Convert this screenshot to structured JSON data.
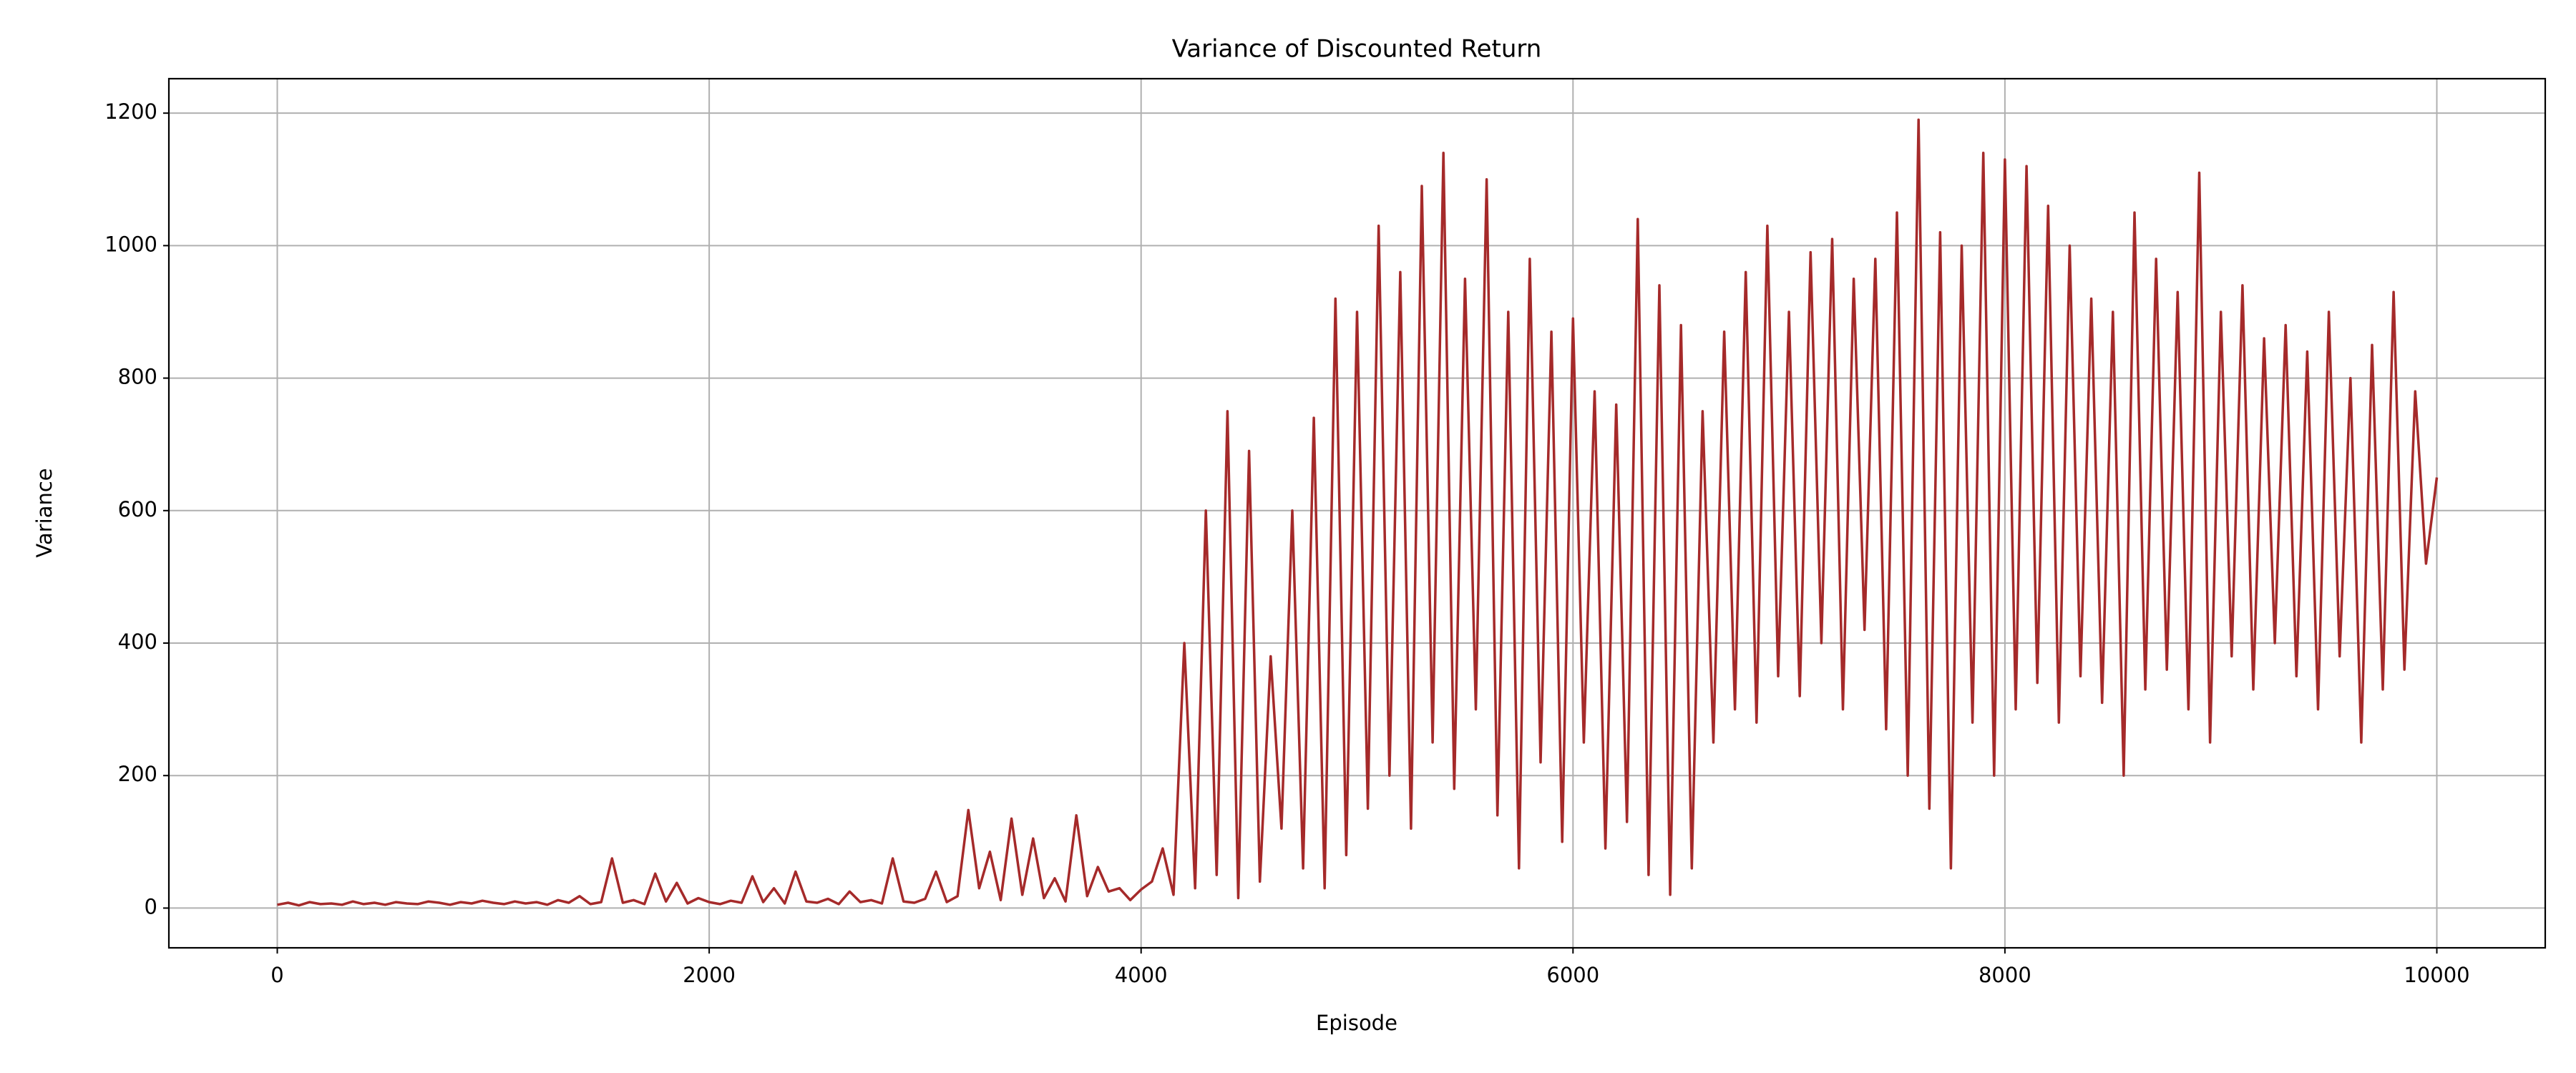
{
  "chart_data": {
    "type": "line",
    "title": "Variance of Discounted Return",
    "xlabel": "Episode",
    "ylabel": "Variance",
    "color": "#a52a2a",
    "grid": true,
    "xlim": [
      -502,
      10502
    ],
    "ylim": [
      -60,
      1252
    ],
    "xticks": [
      0,
      2000,
      4000,
      6000,
      8000,
      10000
    ],
    "yticks": [
      0,
      200,
      400,
      600,
      800,
      1000,
      1200
    ],
    "x": [
      0,
      50,
      100,
      150,
      200,
      250,
      300,
      350,
      400,
      450,
      500,
      550,
      600,
      650,
      700,
      750,
      800,
      850,
      900,
      950,
      1000,
      1050,
      1100,
      1150,
      1200,
      1250,
      1300,
      1350,
      1400,
      1450,
      1500,
      1550,
      1600,
      1650,
      1700,
      1750,
      1800,
      1850,
      1900,
      1950,
      2000,
      2050,
      2100,
      2150,
      2200,
      2250,
      2300,
      2350,
      2400,
      2450,
      2500,
      2550,
      2600,
      2650,
      2700,
      2750,
      2800,
      2850,
      2900,
      2950,
      3000,
      3050,
      3100,
      3150,
      3200,
      3250,
      3300,
      3350,
      3400,
      3450,
      3500,
      3550,
      3600,
      3650,
      3700,
      3750,
      3800,
      3850,
      3900,
      3950,
      4000,
      4050,
      4100,
      4150,
      4200,
      4250,
      4300,
      4350,
      4400,
      4450,
      4500,
      4550,
      4600,
      4650,
      4700,
      4750,
      4800,
      4850,
      4900,
      4950,
      5000,
      5050,
      5100,
      5150,
      5200,
      5250,
      5300,
      5350,
      5400,
      5450,
      5500,
      5550,
      5600,
      5650,
      5700,
      5750,
      5800,
      5850,
      5900,
      5950,
      6000,
      6050,
      6100,
      6150,
      6200,
      6250,
      6300,
      6350,
      6400,
      6450,
      6500,
      6550,
      6600,
      6650,
      6700,
      6750,
      6800,
      6850,
      6900,
      6950,
      7000,
      7050,
      7100,
      7150,
      7200,
      7250,
      7300,
      7350,
      7400,
      7450,
      7500,
      7550,
      7600,
      7650,
      7700,
      7750,
      7800,
      7850,
      7900,
      7950,
      8000,
      8050,
      8100,
      8150,
      8200,
      8250,
      8300,
      8350,
      8400,
      8450,
      8500,
      8550,
      8600,
      8650,
      8700,
      8750,
      8800,
      8850,
      8900,
      8950,
      9000,
      9050,
      9100,
      9150,
      9200,
      9250,
      9300,
      9350,
      9400,
      9450,
      9500,
      9550,
      9600,
      9650,
      9700,
      9750,
      9800,
      9850,
      9900,
      9950,
      10000
    ],
    "values": [
      5,
      8,
      4,
      9,
      6,
      7,
      5,
      10,
      6,
      8,
      5,
      9,
      7,
      6,
      10,
      8,
      5,
      9,
      7,
      11,
      8,
      6,
      10,
      7,
      9,
      5,
      12,
      8,
      18,
      6,
      9,
      75,
      8,
      12,
      6,
      52,
      10,
      38,
      7,
      15,
      9,
      6,
      11,
      8,
      48,
      9,
      30,
      7,
      55,
      10,
      8,
      14,
      6,
      25,
      9,
      12,
      7,
      75,
      10,
      8,
      14,
      55,
      9,
      18,
      148,
      30,
      85,
      12,
      135,
      20,
      105,
      15,
      45,
      10,
      140,
      18,
      62,
      25,
      30,
      12,
      28,
      40,
      90,
      20,
      400,
      30,
      600,
      50,
      750,
      15,
      690,
      40,
      380,
      120,
      600,
      60,
      740,
      30,
      920,
      80,
      900,
      150,
      1030,
      200,
      960,
      120,
      1090,
      250,
      1140,
      180,
      950,
      300,
      1100,
      140,
      900,
      60,
      980,
      220,
      870,
      100,
      890,
      250,
      780,
      90,
      760,
      130,
      1040,
      50,
      940,
      20,
      880,
      60,
      750,
      250,
      870,
      300,
      960,
      280,
      1030,
      350,
      900,
      320,
      990,
      400,
      1010,
      300,
      950,
      420,
      980,
      270,
      1050,
      200,
      1190,
      150,
      1020,
      60,
      1000,
      280,
      1140,
      200,
      1130,
      300,
      1120,
      340,
      1060,
      280,
      1000,
      350,
      920,
      310,
      900,
      200,
      1050,
      330,
      980,
      360,
      930,
      300,
      1110,
      250,
      900,
      380,
      940,
      330,
      860,
      400,
      880,
      350,
      840,
      300,
      900,
      380,
      800,
      250,
      850,
      330,
      930,
      360,
      780,
      520,
      650
    ]
  }
}
